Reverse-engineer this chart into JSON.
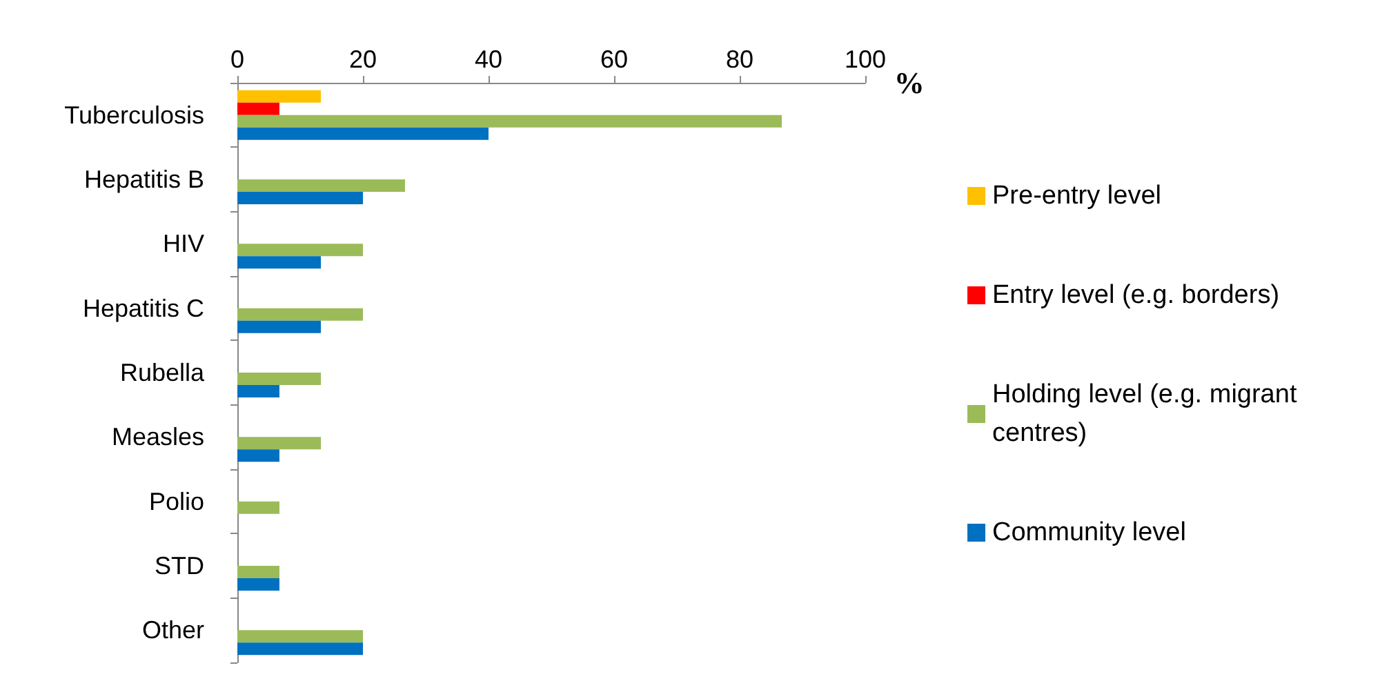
{
  "chart_data": {
    "type": "bar",
    "orientation": "horizontal",
    "xlabel": "%",
    "categories": [
      "Tuberculosis",
      "Hepatitis B",
      "HIV",
      "Hepatitis C",
      "Rubella",
      "Measles",
      "Polio",
      "STD",
      "Other"
    ],
    "series": [
      {
        "name": "Pre-entry level",
        "color": "#ffc000",
        "values": [
          13.3,
          null,
          null,
          null,
          null,
          null,
          null,
          null,
          null
        ]
      },
      {
        "name": "Entry level (e.g. borders)",
        "color": "#ff0000",
        "values": [
          6.7,
          null,
          null,
          null,
          null,
          null,
          null,
          null,
          null
        ]
      },
      {
        "name": "Holding level (e.g. migrant centres)",
        "color": "#9bbb59",
        "values": [
          86.7,
          26.7,
          20,
          20,
          13.3,
          13.3,
          6.7,
          6.7,
          20
        ]
      },
      {
        "name": "Community level",
        "color": "#0070c0",
        "values": [
          40,
          20,
          13.3,
          13.3,
          6.7,
          6.7,
          null,
          6.7,
          20
        ]
      }
    ],
    "xlim": [
      0,
      100
    ],
    "xticks": [
      0,
      20,
      40,
      60,
      80,
      100
    ],
    "grid": false,
    "legend": "right"
  }
}
